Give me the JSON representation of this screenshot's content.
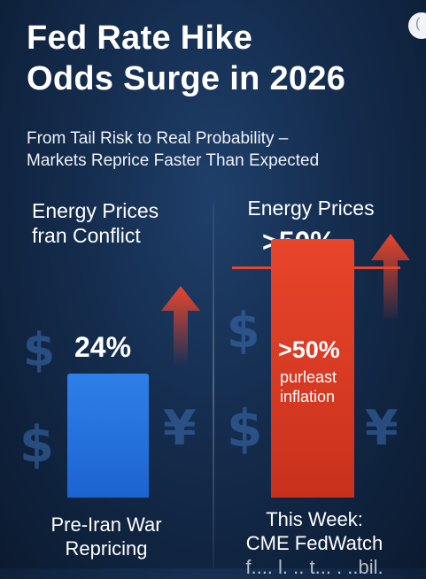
{
  "header": {
    "title_line1": "Fed Rate Hike",
    "title_line2": "Odds Surge in 2026",
    "subtitle_line1": "From Tail Risk to Real Probability –",
    "subtitle_line2": "Markets Reprice Faster Than Expected"
  },
  "corner_badge": "(",
  "left_panel": {
    "label_line1": "Energy Prices",
    "label_line2": "fran Conflict",
    "value_label": "24%",
    "bottom_line1": "Pre-Iran War",
    "bottom_line2": "Repricing"
  },
  "right_panel": {
    "label_line1": "Energy Prices",
    "label_line2": ">50%",
    "bar_line1": ">50%",
    "bar_line2": "purleast",
    "bar_line3": "inflation",
    "bottom_line1": "This Week:",
    "bottom_line2": "CME FedWatch",
    "bottom_line3": "f.... l. .. t... . ..bil."
  },
  "symbols": {
    "dollar": "$",
    "yen": "¥"
  },
  "colors": {
    "background": "#142c4d",
    "bar_left": "#2577e0",
    "bar_right": "#dd3d24",
    "arrow": "#e8452b",
    "symbol": "#3c6fb5"
  },
  "chart_data": {
    "type": "bar",
    "categories": [
      "Pre-Iran War Repricing",
      "This Week: CME FedWatch"
    ],
    "values": [
      24,
      50
    ],
    "value_labels": [
      "24%",
      ">50%"
    ],
    "ylim": [
      0,
      60
    ],
    "grid": false,
    "legend": "none"
  }
}
